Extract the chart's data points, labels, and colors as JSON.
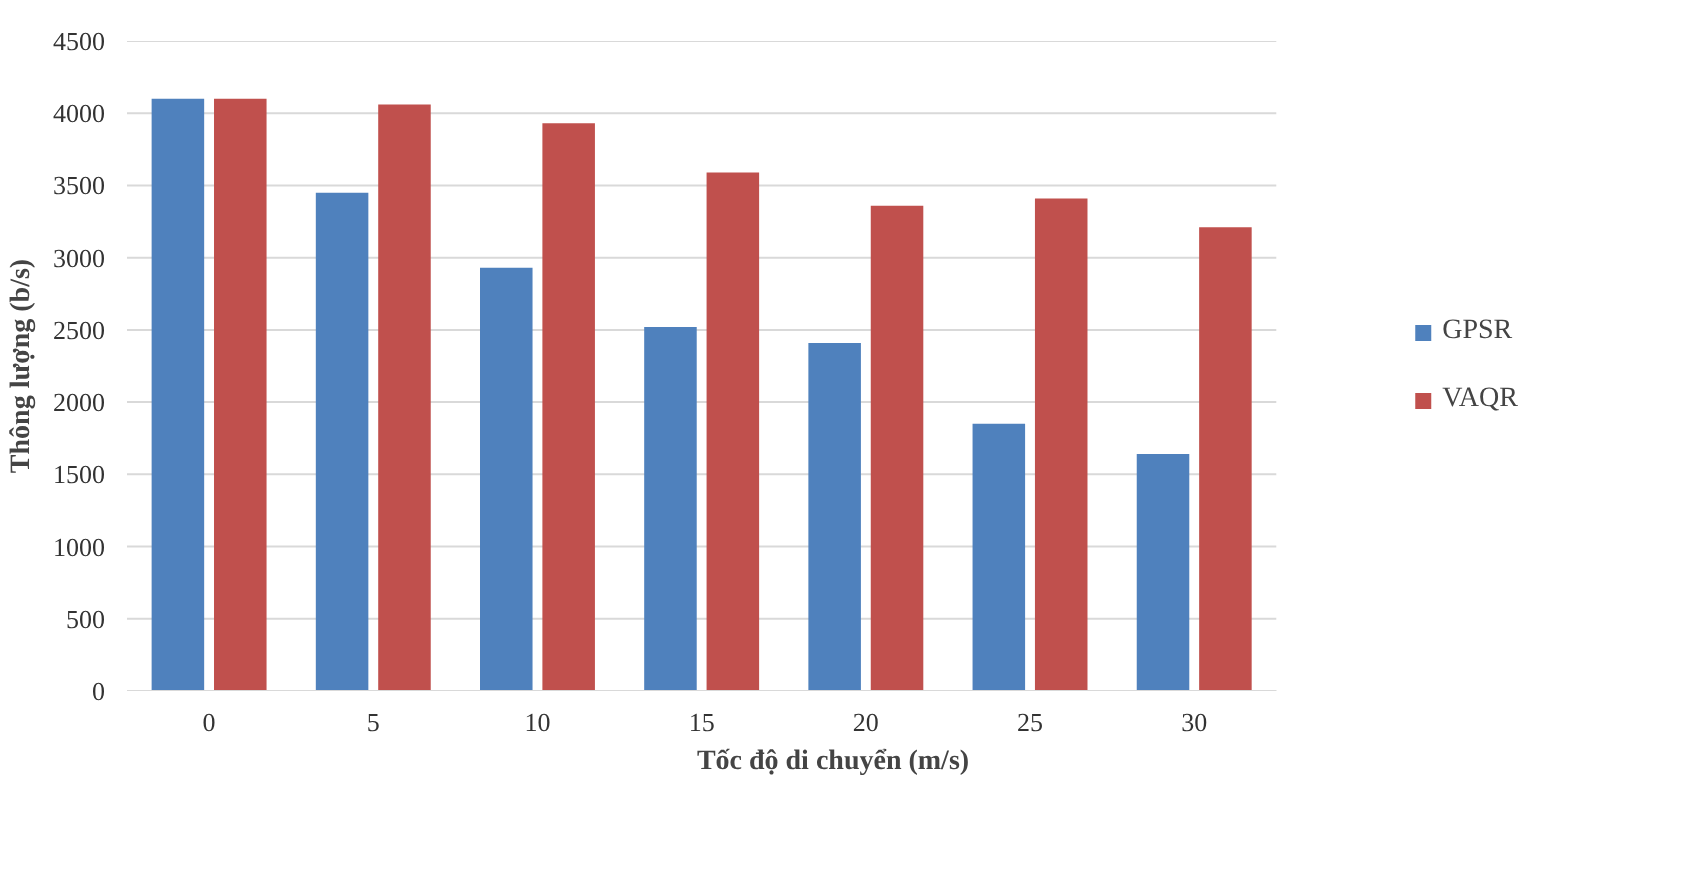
{
  "chart_data": {
    "type": "bar",
    "xlabel": "Tốc độ di chuyển (m/s)",
    "ylabel": "Thông lượng (b/s)",
    "categories": [
      "0",
      "5",
      "10",
      "15",
      "20",
      "25",
      "30"
    ],
    "series": [
      {
        "name": "GPSR",
        "color": "#4f81bd",
        "values": [
          4100,
          3450,
          2930,
          2520,
          2410,
          1850,
          1640
        ]
      },
      {
        "name": "VAQR",
        "color": "#c0504d",
        "values": [
          4100,
          4060,
          3930,
          3590,
          3360,
          3410,
          3210
        ]
      }
    ],
    "ylim": [
      0,
      4500
    ],
    "yticks": [
      0,
      500,
      1000,
      1500,
      2000,
      2500,
      3000,
      3500,
      4000,
      4500
    ],
    "grid": "y",
    "legend": "right"
  }
}
